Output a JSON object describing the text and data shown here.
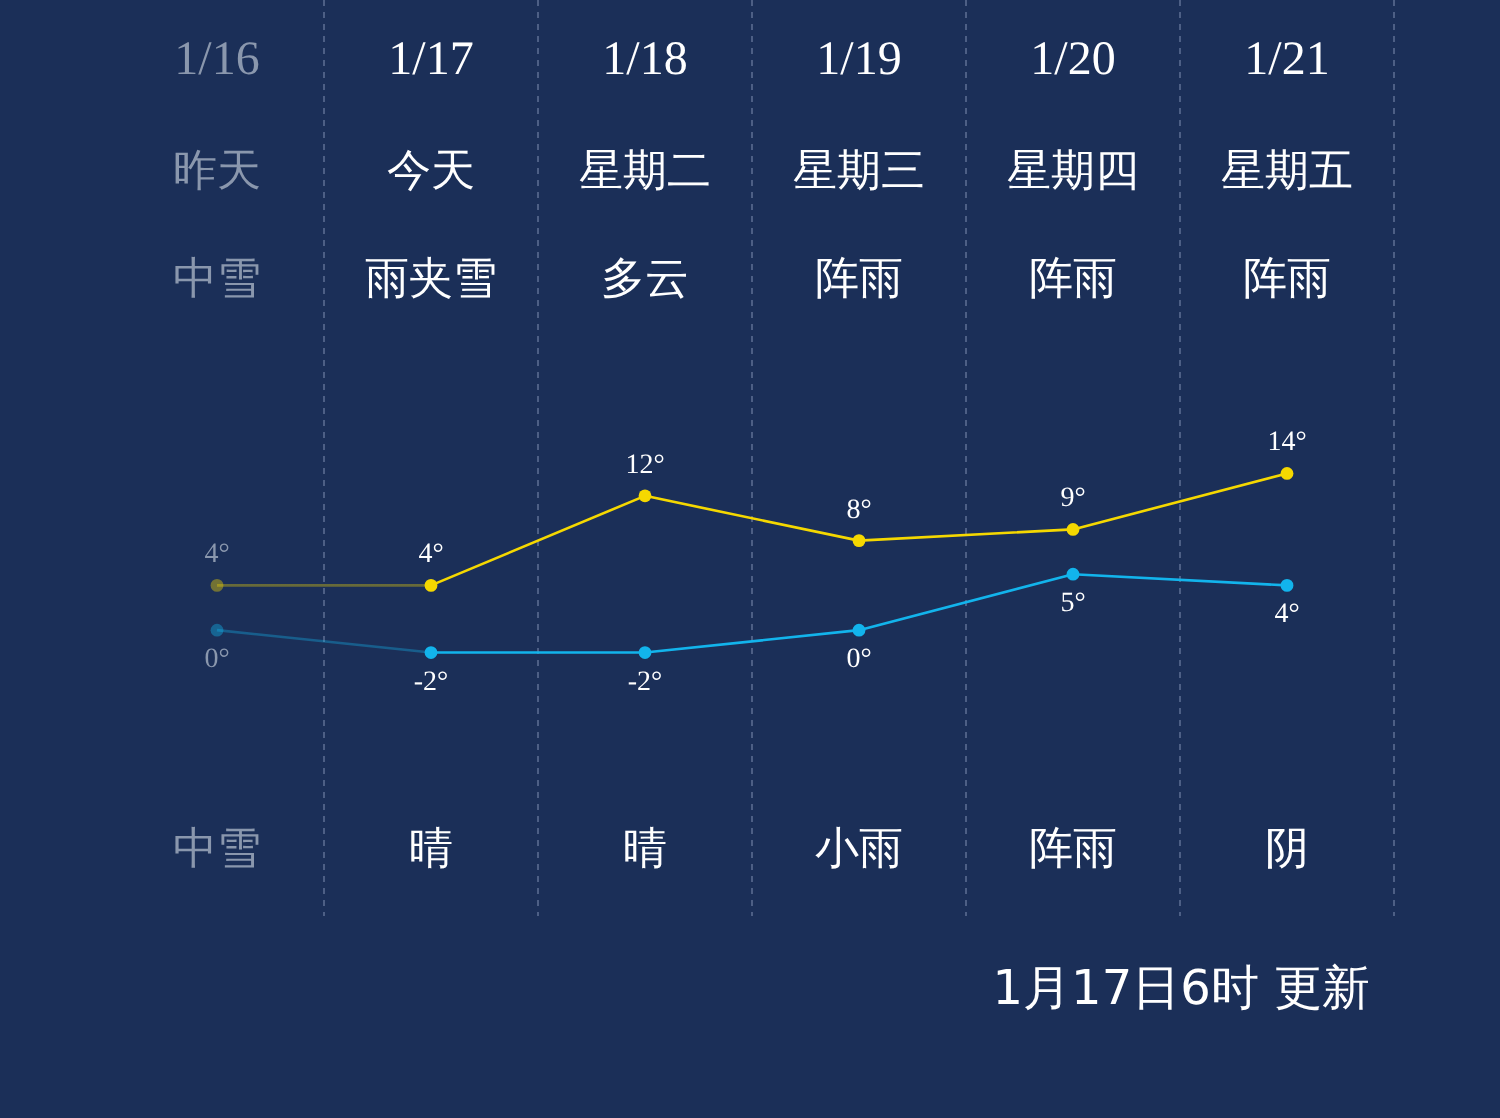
{
  "chart_data": {
    "type": "line",
    "categories": [
      "1/16",
      "1/17",
      "1/18",
      "1/19",
      "1/20",
      "1/21"
    ],
    "series": [
      {
        "color": "#f5d800",
        "values": [
          4,
          4,
          12,
          8,
          9,
          14
        ],
        "value_labels": [
          "4°",
          "4°",
          "12°",
          "8°",
          "9°",
          "14°"
        ]
      },
      {
        "color": "#12b4ec",
        "values": [
          0,
          -2,
          -2,
          0,
          5,
          4
        ],
        "value_labels": [
          "0°",
          "-2°",
          "-2°",
          "0°",
          "5°",
          "4°"
        ]
      }
    ],
    "marker": "circle",
    "grid": "x",
    "annotations": [
      "昨天",
      "今天",
      "星期二",
      "星期三",
      "星期四",
      "星期五",
      "中雪",
      "雨夹雪",
      "多云",
      "阵雨",
      "阵雨",
      "阵雨",
      "中雪",
      "晴",
      "晴",
      "小雨",
      "阵雨",
      "阴",
      "1月17日6时 更新"
    ]
  }
}
